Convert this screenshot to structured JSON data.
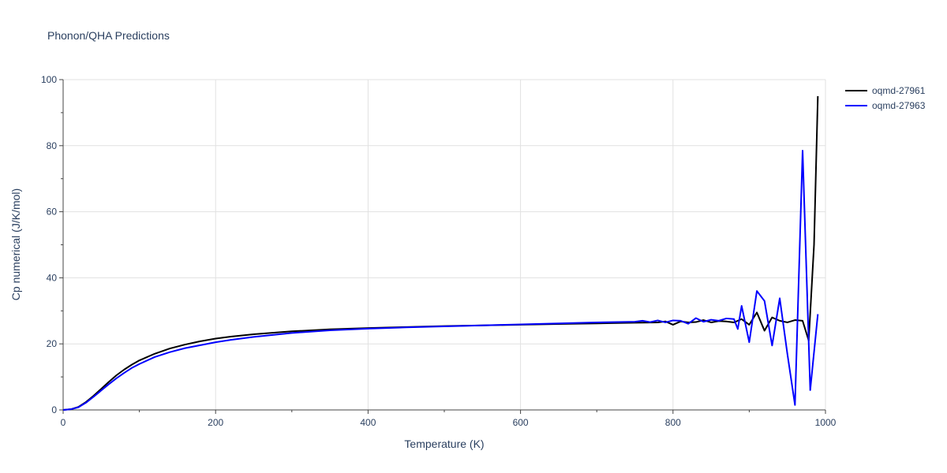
{
  "chart_data": {
    "type": "line",
    "title": "Phonon/QHA Predictions",
    "xlabel": "Temperature (K)",
    "ylabel": "Cp numerical (J/K/mol)",
    "xlim": [
      0,
      1000
    ],
    "ylim": [
      0,
      100
    ],
    "x_ticks": [
      0,
      200,
      400,
      600,
      800,
      1000
    ],
    "y_ticks": [
      0,
      20,
      40,
      60,
      80,
      100
    ],
    "grid": true,
    "legend_position": "top-right outside",
    "series": [
      {
        "name": "oqmd-27961",
        "color": "#000000",
        "points": [
          [
            0,
            0
          ],
          [
            10,
            0.2
          ],
          [
            20,
            0.9
          ],
          [
            30,
            2.4
          ],
          [
            40,
            4.3
          ],
          [
            50,
            6.4
          ],
          [
            60,
            8.5
          ],
          [
            70,
            10.5
          ],
          [
            80,
            12.2
          ],
          [
            90,
            13.7
          ],
          [
            100,
            15.0
          ],
          [
            120,
            17.0
          ],
          [
            140,
            18.6
          ],
          [
            160,
            19.8
          ],
          [
            180,
            20.8
          ],
          [
            200,
            21.6
          ],
          [
            220,
            22.2
          ],
          [
            250,
            22.9
          ],
          [
            300,
            23.8
          ],
          [
            350,
            24.4
          ],
          [
            400,
            24.8
          ],
          [
            450,
            25.1
          ],
          [
            500,
            25.4
          ],
          [
            550,
            25.6
          ],
          [
            600,
            25.8
          ],
          [
            650,
            26.0
          ],
          [
            700,
            26.2
          ],
          [
            750,
            26.4
          ],
          [
            780,
            26.5
          ],
          [
            790,
            26.8
          ],
          [
            800,
            25.8
          ],
          [
            810,
            26.8
          ],
          [
            820,
            26.5
          ],
          [
            830,
            26.6
          ],
          [
            840,
            27.2
          ],
          [
            850,
            26.5
          ],
          [
            860,
            26.9
          ],
          [
            870,
            26.8
          ],
          [
            880,
            26.5
          ],
          [
            890,
            27.5
          ],
          [
            900,
            25.8
          ],
          [
            910,
            29.5
          ],
          [
            920,
            24.0
          ],
          [
            930,
            28.0
          ],
          [
            940,
            27.0
          ],
          [
            950,
            26.5
          ],
          [
            960,
            27.2
          ],
          [
            970,
            27.0
          ],
          [
            978,
            21.0
          ],
          [
            985,
            50.0
          ],
          [
            990,
            95.0
          ]
        ]
      },
      {
        "name": "oqmd-27963",
        "color": "#0000ff",
        "points": [
          [
            0,
            0
          ],
          [
            10,
            0.2
          ],
          [
            20,
            0.8
          ],
          [
            30,
            2.2
          ],
          [
            40,
            4.0
          ],
          [
            50,
            5.9
          ],
          [
            60,
            7.8
          ],
          [
            70,
            9.6
          ],
          [
            80,
            11.2
          ],
          [
            90,
            12.7
          ],
          [
            100,
            13.9
          ],
          [
            120,
            16.0
          ],
          [
            140,
            17.5
          ],
          [
            160,
            18.7
          ],
          [
            180,
            19.6
          ],
          [
            200,
            20.5
          ],
          [
            220,
            21.2
          ],
          [
            250,
            22.1
          ],
          [
            300,
            23.3
          ],
          [
            350,
            24.1
          ],
          [
            400,
            24.6
          ],
          [
            450,
            25.0
          ],
          [
            500,
            25.3
          ],
          [
            550,
            25.6
          ],
          [
            600,
            25.9
          ],
          [
            650,
            26.2
          ],
          [
            700,
            26.5
          ],
          [
            750,
            26.7
          ],
          [
            760,
            27.0
          ],
          [
            770,
            26.6
          ],
          [
            780,
            27.1
          ],
          [
            790,
            26.5
          ],
          [
            800,
            27.1
          ],
          [
            810,
            27.0
          ],
          [
            820,
            26.1
          ],
          [
            830,
            27.8
          ],
          [
            840,
            26.7
          ],
          [
            850,
            27.3
          ],
          [
            860,
            27.0
          ],
          [
            870,
            27.7
          ],
          [
            880,
            27.5
          ],
          [
            885,
            24.5
          ],
          [
            890,
            31.5
          ],
          [
            900,
            20.5
          ],
          [
            910,
            36.0
          ],
          [
            920,
            33.0
          ],
          [
            930,
            19.5
          ],
          [
            940,
            33.8
          ],
          [
            950,
            17.0
          ],
          [
            960,
            1.5
          ],
          [
            970,
            78.5
          ],
          [
            980,
            6.0
          ],
          [
            990,
            29.0
          ]
        ]
      }
    ]
  }
}
